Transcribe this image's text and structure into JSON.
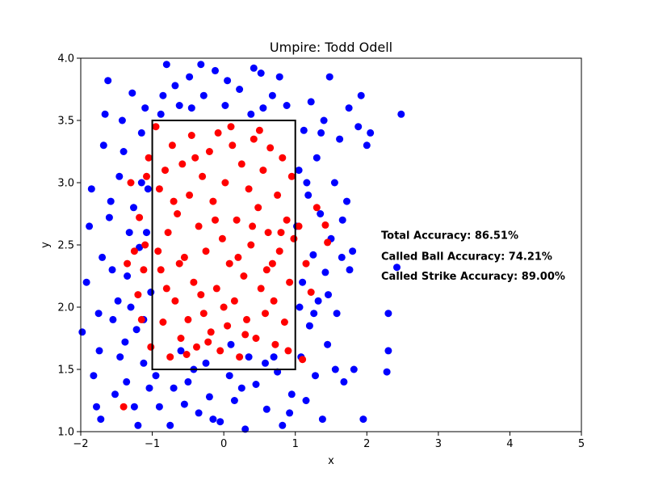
{
  "chart_data": {
    "type": "scatter",
    "title": "Umpire: Todd Odell",
    "xlabel": "x",
    "ylabel": "y",
    "xlim": [
      -2,
      5
    ],
    "ylim": [
      1.0,
      4.0
    ],
    "xticks": [
      "−2",
      "−1",
      "0",
      "1",
      "2",
      "3",
      "4",
      "5"
    ],
    "yticks": [
      "1.0",
      "1.5",
      "2.0",
      "2.5",
      "3.0",
      "3.5",
      "4.0"
    ],
    "grid": false,
    "strike_zone": {
      "x": [
        -1,
        1
      ],
      "y": [
        1.5,
        3.5
      ]
    },
    "annotations": [
      {
        "text": "Total Accuracy: 86.51%",
        "x": 2.2,
        "y": 2.55
      },
      {
        "text": "Called Ball Accuracy: 74.21%",
        "x": 2.2,
        "y": 2.38
      },
      {
        "text": "Called Strike Accuracy: 89.00%",
        "x": 2.2,
        "y": 2.22
      }
    ],
    "series": [
      {
        "color": "#0000ff",
        "points": [
          [
            -1.98,
            1.8
          ],
          [
            -1.92,
            2.2
          ],
          [
            -1.88,
            2.65
          ],
          [
            -1.82,
            1.45
          ],
          [
            -1.78,
            1.2
          ],
          [
            -1.74,
            1.65
          ],
          [
            -1.7,
            2.4
          ],
          [
            -1.68,
            3.3
          ],
          [
            -1.62,
            3.82
          ],
          [
            -1.58,
            2.85
          ],
          [
            -1.55,
            1.9
          ],
          [
            -1.52,
            1.3
          ],
          [
            -1.48,
            2.05
          ],
          [
            -1.46,
            3.05
          ],
          [
            -1.42,
            3.5
          ],
          [
            -1.38,
            1.72
          ],
          [
            -1.35,
            2.25
          ],
          [
            -1.32,
            2.6
          ],
          [
            -1.28,
            3.72
          ],
          [
            -1.25,
            1.2
          ],
          [
            -1.22,
            1.82
          ],
          [
            -1.18,
            2.48
          ],
          [
            -1.15,
            3.0
          ],
          [
            -1.12,
            1.55
          ],
          [
            -1.1,
            3.6
          ],
          [
            -1.06,
            2.95
          ],
          [
            -1.04,
            1.35
          ],
          [
            -1.02,
            2.12
          ],
          [
            -1.85,
            2.95
          ],
          [
            -1.75,
            1.95
          ],
          [
            -1.6,
            2.72
          ],
          [
            -1.45,
            1.6
          ],
          [
            -1.4,
            3.25
          ],
          [
            -1.3,
            2.0
          ],
          [
            -1.2,
            1.05
          ],
          [
            -1.15,
            3.4
          ],
          [
            -1.08,
            2.6
          ],
          [
            -1.72,
            1.1
          ],
          [
            -1.66,
            3.55
          ],
          [
            -1.56,
            2.3
          ],
          [
            -1.36,
            1.4
          ],
          [
            -1.26,
            2.8
          ],
          [
            -1.12,
            1.9
          ],
          [
            -0.95,
            1.45
          ],
          [
            -0.9,
            1.2
          ],
          [
            -0.85,
            3.7
          ],
          [
            -0.8,
            3.95
          ],
          [
            -0.75,
            1.05
          ],
          [
            -0.7,
            1.35
          ],
          [
            -0.62,
            3.62
          ],
          [
            -0.55,
            1.22
          ],
          [
            -0.48,
            3.85
          ],
          [
            -0.42,
            1.5
          ],
          [
            -0.35,
            1.15
          ],
          [
            -0.28,
            3.7
          ],
          [
            -0.2,
            1.28
          ],
          [
            -0.12,
            3.9
          ],
          [
            -0.05,
            1.08
          ],
          [
            0.02,
            3.62
          ],
          [
            0.08,
            1.45
          ],
          [
            0.15,
            1.25
          ],
          [
            0.22,
            3.75
          ],
          [
            0.3,
            1.02
          ],
          [
            0.38,
            3.55
          ],
          [
            0.45,
            1.38
          ],
          [
            0.52,
            3.88
          ],
          [
            0.6,
            1.18
          ],
          [
            0.68,
            3.7
          ],
          [
            0.75,
            1.48
          ],
          [
            0.82,
            1.05
          ],
          [
            0.88,
            3.62
          ],
          [
            0.95,
            1.3
          ],
          [
            -0.88,
            3.55
          ],
          [
            -0.68,
            3.78
          ],
          [
            -0.5,
            1.4
          ],
          [
            -0.32,
            3.95
          ],
          [
            -0.15,
            1.1
          ],
          [
            0.05,
            3.82
          ],
          [
            0.25,
            1.35
          ],
          [
            0.42,
            3.92
          ],
          [
            0.58,
            1.55
          ],
          [
            0.78,
            3.85
          ],
          [
            0.92,
            1.15
          ],
          [
            -0.6,
            1.65
          ],
          [
            0.35,
            1.6
          ],
          [
            0.7,
            1.6
          ],
          [
            -0.25,
            1.55
          ],
          [
            0.1,
            1.7
          ],
          [
            -0.45,
            3.6
          ],
          [
            0.55,
            3.6
          ],
          [
            1.02,
            2.65
          ],
          [
            1.05,
            3.1
          ],
          [
            1.08,
            1.6
          ],
          [
            1.1,
            2.2
          ],
          [
            1.12,
            3.42
          ],
          [
            1.15,
            1.25
          ],
          [
            1.18,
            2.9
          ],
          [
            1.2,
            1.85
          ],
          [
            1.22,
            3.65
          ],
          [
            1.25,
            2.42
          ],
          [
            1.28,
            1.45
          ],
          [
            1.3,
            3.2
          ],
          [
            1.32,
            2.05
          ],
          [
            1.35,
            2.75
          ],
          [
            1.38,
            1.1
          ],
          [
            1.4,
            3.5
          ],
          [
            1.42,
            2.28
          ],
          [
            1.45,
            1.7
          ],
          [
            1.48,
            3.85
          ],
          [
            1.5,
            2.55
          ],
          [
            1.55,
            3.0
          ],
          [
            1.58,
            1.95
          ],
          [
            1.62,
            3.35
          ],
          [
            1.65,
            2.4
          ],
          [
            1.68,
            1.4
          ],
          [
            1.72,
            2.85
          ],
          [
            1.75,
            3.6
          ],
          [
            1.8,
            2.45
          ],
          [
            1.82,
            1.5
          ],
          [
            1.88,
            3.45
          ],
          [
            1.92,
            3.7
          ],
          [
            1.95,
            1.1
          ],
          [
            2.0,
            3.3
          ],
          [
            2.05,
            3.4
          ],
          [
            2.3,
            1.95
          ],
          [
            2.3,
            1.65
          ],
          [
            2.28,
            1.48
          ],
          [
            2.48,
            3.55
          ],
          [
            2.42,
            2.32
          ],
          [
            1.06,
            2.0
          ],
          [
            1.16,
            3.0
          ],
          [
            1.26,
            1.95
          ],
          [
            1.36,
            3.4
          ],
          [
            1.46,
            2.1
          ],
          [
            1.56,
            1.5
          ],
          [
            1.66,
            2.7
          ],
          [
            1.76,
            2.3
          ]
        ]
      },
      {
        "color": "#ff0000",
        "points": [
          [
            -0.95,
            3.45
          ],
          [
            -0.9,
            2.95
          ],
          [
            -0.88,
            2.3
          ],
          [
            -0.85,
            1.88
          ],
          [
            -0.82,
            3.1
          ],
          [
            -0.78,
            2.6
          ],
          [
            -0.75,
            1.6
          ],
          [
            -0.72,
            3.3
          ],
          [
            -0.68,
            2.05
          ],
          [
            -0.65,
            2.75
          ],
          [
            -0.6,
            1.75
          ],
          [
            -0.58,
            3.15
          ],
          [
            -0.55,
            2.4
          ],
          [
            -0.5,
            1.9
          ],
          [
            -0.48,
            2.9
          ],
          [
            -0.45,
            3.38
          ],
          [
            -0.42,
            2.2
          ],
          [
            -0.38,
            1.68
          ],
          [
            -0.35,
            2.65
          ],
          [
            -0.3,
            3.05
          ],
          [
            -0.28,
            1.95
          ],
          [
            -0.25,
            2.45
          ],
          [
            -0.2,
            3.25
          ],
          [
            -0.18,
            1.8
          ],
          [
            -0.15,
            2.85
          ],
          [
            -0.1,
            2.15
          ],
          [
            -0.08,
            3.4
          ],
          [
            -0.05,
            1.65
          ],
          [
            -0.02,
            2.55
          ],
          [
            0.02,
            3.0
          ],
          [
            0.05,
            1.85
          ],
          [
            0.08,
            2.35
          ],
          [
            0.12,
            3.3
          ],
          [
            0.15,
            2.05
          ],
          [
            0.18,
            2.7
          ],
          [
            0.22,
            1.6
          ],
          [
            0.25,
            3.15
          ],
          [
            0.28,
            2.25
          ],
          [
            0.32,
            1.9
          ],
          [
            0.35,
            2.95
          ],
          [
            0.38,
            2.5
          ],
          [
            0.42,
            3.35
          ],
          [
            0.45,
            1.75
          ],
          [
            0.48,
            2.8
          ],
          [
            0.52,
            2.15
          ],
          [
            0.55,
            3.1
          ],
          [
            0.58,
            1.95
          ],
          [
            0.62,
            2.6
          ],
          [
            0.65,
            3.28
          ],
          [
            0.68,
            2.35
          ],
          [
            0.72,
            1.7
          ],
          [
            0.75,
            2.9
          ],
          [
            0.78,
            2.45
          ],
          [
            0.82,
            3.2
          ],
          [
            0.85,
            1.88
          ],
          [
            0.88,
            2.7
          ],
          [
            0.92,
            2.2
          ],
          [
            0.95,
            3.05
          ],
          [
            0.98,
            2.55
          ],
          [
            -0.92,
            2.45
          ],
          [
            -0.8,
            2.15
          ],
          [
            -0.7,
            2.85
          ],
          [
            -0.62,
            2.35
          ],
          [
            -0.52,
            1.62
          ],
          [
            -0.4,
            3.2
          ],
          [
            -0.32,
            2.1
          ],
          [
            -0.22,
            1.72
          ],
          [
            -0.12,
            2.7
          ],
          [
            0.0,
            2.0
          ],
          [
            0.1,
            3.45
          ],
          [
            0.2,
            2.4
          ],
          [
            0.3,
            1.78
          ],
          [
            0.4,
            2.65
          ],
          [
            0.5,
            3.42
          ],
          [
            0.6,
            2.3
          ],
          [
            0.7,
            2.05
          ],
          [
            0.8,
            2.6
          ],
          [
            0.9,
            1.65
          ],
          [
            -1.05,
            3.2
          ],
          [
            -1.1,
            2.5
          ],
          [
            -1.15,
            1.9
          ],
          [
            -1.2,
            2.1
          ],
          [
            -1.25,
            2.45
          ],
          [
            -1.3,
            3.0
          ],
          [
            -1.35,
            2.35
          ],
          [
            -1.4,
            1.2
          ],
          [
            -1.18,
            2.72
          ],
          [
            -1.08,
            3.05
          ],
          [
            -1.12,
            2.3
          ],
          [
            -1.02,
            1.68
          ],
          [
            1.05,
            2.65
          ],
          [
            1.1,
            1.58
          ],
          [
            1.15,
            2.35
          ],
          [
            1.22,
            2.12
          ],
          [
            1.3,
            2.8
          ],
          [
            1.45,
            2.52
          ],
          [
            1.42,
            2.66
          ]
        ]
      }
    ]
  }
}
